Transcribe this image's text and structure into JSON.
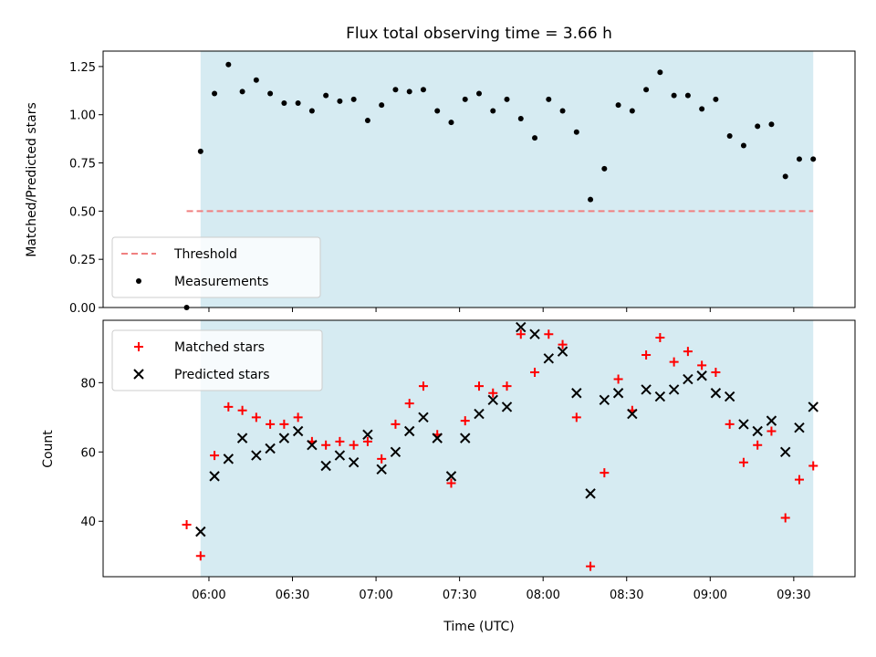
{
  "title": "Flux total observing time = 3.66 h",
  "xlabel": "Time (UTC)",
  "x_ticks": [
    "06:00",
    "06:30",
    "07:00",
    "07:30",
    "08:00",
    "08:30",
    "09:00",
    "09:30"
  ],
  "colors": {
    "shade": "#add8e6",
    "threshold": "#f08080",
    "measurement": "#000000",
    "matched": "#ff0000",
    "predicted": "#000000"
  },
  "chart_data": [
    {
      "type": "scatter",
      "ylabel": "Matched/Predicted stars",
      "ylim": [
        0,
        1.33
      ],
      "y_ticks": [
        "0.00",
        "0.25",
        "0.50",
        "0.75",
        "1.00",
        "1.25"
      ],
      "observing_window": [
        "05:57",
        "09:37"
      ],
      "threshold": {
        "name": "Threshold",
        "value": 0.5,
        "x_range": [
          "05:52",
          "09:37"
        ]
      },
      "legend": {
        "position": "lower-left",
        "entries": [
          "Threshold",
          "Measurements"
        ]
      },
      "series": [
        {
          "name": "Measurements",
          "x": [
            "05:52",
            "05:57",
            "06:02",
            "06:07",
            "06:12",
            "06:17",
            "06:22",
            "06:27",
            "06:32",
            "06:37",
            "06:42",
            "06:47",
            "06:52",
            "06:57",
            "07:02",
            "07:07",
            "07:12",
            "07:17",
            "07:22",
            "07:27",
            "07:32",
            "07:37",
            "07:42",
            "07:47",
            "07:52",
            "07:57",
            "08:02",
            "08:07",
            "08:12",
            "08:17",
            "08:22",
            "08:27",
            "08:32",
            "08:37",
            "08:42",
            "08:47",
            "08:52",
            "08:57",
            "09:02",
            "09:07",
            "09:12",
            "09:17",
            "09:22",
            "09:27",
            "09:32",
            "09:37"
          ],
          "y": [
            0.0,
            0.81,
            1.11,
            1.26,
            1.12,
            1.18,
            1.11,
            1.06,
            1.06,
            1.02,
            1.1,
            1.07,
            1.08,
            0.97,
            1.05,
            1.13,
            1.12,
            1.13,
            1.02,
            0.96,
            1.08,
            1.11,
            1.02,
            1.08,
            0.98,
            0.88,
            1.08,
            1.02,
            0.91,
            0.56,
            0.72,
            1.05,
            1.02,
            1.13,
            1.22,
            1.1,
            1.1,
            1.03,
            1.08,
            0.89,
            0.84,
            0.94,
            0.95,
            0.68,
            0.77,
            0.77
          ]
        }
      ]
    },
    {
      "type": "scatter",
      "ylabel": "Count",
      "ylim": [
        24,
        98
      ],
      "y_ticks": [
        "40",
        "60",
        "80"
      ],
      "observing_window": [
        "05:57",
        "09:37"
      ],
      "legend": {
        "position": "upper-left",
        "entries": [
          "Matched stars",
          "Predicted stars"
        ]
      },
      "series": [
        {
          "name": "Matched stars",
          "marker": "plus",
          "x": [
            "05:52",
            "05:57",
            "06:02",
            "06:07",
            "06:12",
            "06:17",
            "06:22",
            "06:27",
            "06:32",
            "06:37",
            "06:42",
            "06:47",
            "06:52",
            "06:57",
            "07:02",
            "07:07",
            "07:12",
            "07:17",
            "07:22",
            "07:27",
            "07:32",
            "07:37",
            "07:42",
            "07:47",
            "07:52",
            "07:57",
            "08:02",
            "08:07",
            "08:12",
            "08:17",
            "08:22",
            "08:27",
            "08:32",
            "08:37",
            "08:42",
            "08:47",
            "08:52",
            "08:57",
            "09:02",
            "09:07",
            "09:12",
            "09:17",
            "09:22",
            "09:27",
            "09:32",
            "09:37"
          ],
          "y": [
            39,
            30,
            59,
            73,
            72,
            70,
            68,
            68,
            70,
            63,
            62,
            63,
            62,
            63,
            58,
            68,
            74,
            79,
            65,
            51,
            69,
            79,
            77,
            79,
            94,
            83,
            94,
            91,
            70,
            27,
            54,
            81,
            72,
            88,
            93,
            86,
            89,
            85,
            83,
            68,
            57,
            62,
            66,
            41,
            52,
            56
          ]
        },
        {
          "name": "Predicted stars",
          "marker": "x",
          "x": [
            "05:57",
            "06:02",
            "06:07",
            "06:12",
            "06:17",
            "06:22",
            "06:27",
            "06:32",
            "06:37",
            "06:42",
            "06:47",
            "06:52",
            "06:57",
            "07:02",
            "07:07",
            "07:12",
            "07:17",
            "07:22",
            "07:27",
            "07:32",
            "07:37",
            "07:42",
            "07:47",
            "07:52",
            "07:57",
            "08:02",
            "08:07",
            "08:12",
            "08:17",
            "08:22",
            "08:27",
            "08:32",
            "08:37",
            "08:42",
            "08:47",
            "08:52",
            "08:57",
            "09:02",
            "09:07",
            "09:12",
            "09:17",
            "09:22",
            "09:27",
            "09:32",
            "09:37"
          ],
          "y": [
            37,
            53,
            58,
            64,
            59,
            61,
            64,
            66,
            62,
            56,
            59,
            57,
            65,
            55,
            60,
            66,
            70,
            64,
            53,
            64,
            71,
            75,
            73,
            96,
            94,
            87,
            89,
            77,
            48,
            75,
            77,
            71,
            78,
            76,
            78,
            81,
            82,
            77,
            76,
            68,
            66,
            69,
            60,
            67,
            73
          ]
        }
      ]
    }
  ]
}
